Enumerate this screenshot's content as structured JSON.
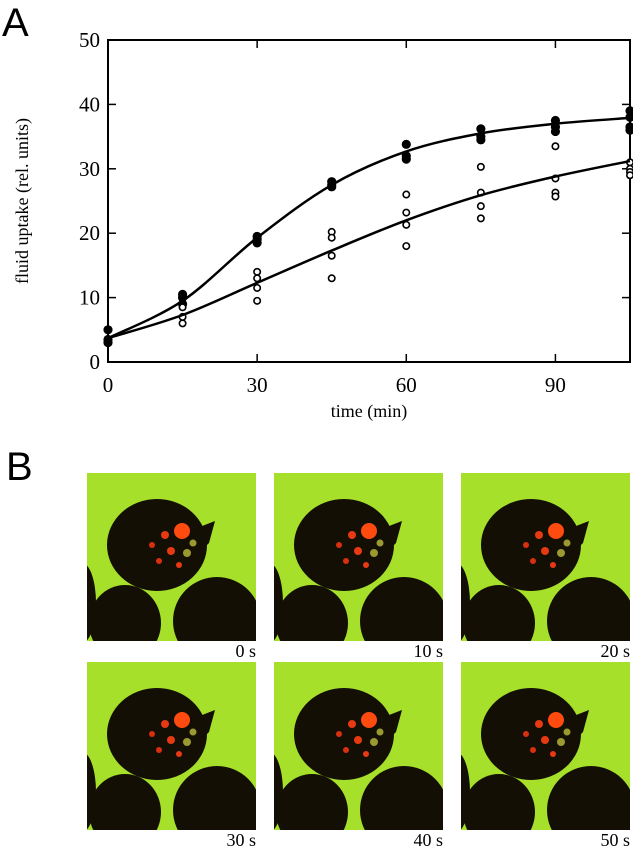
{
  "panel_a_label": "A",
  "chart_data": {
    "type": "scatter",
    "x_label": "time (min)",
    "y_label": "fluid uptake (rel. units)",
    "xlim": [
      0,
      105
    ],
    "ylim": [
      0,
      50
    ],
    "xticks": [
      0,
      30,
      60,
      90
    ],
    "yticks": [
      0,
      10,
      20,
      30,
      40,
      50
    ],
    "series": [
      {
        "marker": "filled",
        "color": "#000000",
        "x": [
          0,
          0,
          0,
          15,
          15,
          15,
          30,
          30,
          30,
          45,
          45,
          45,
          60,
          60,
          60,
          75,
          75,
          75,
          90,
          90,
          90,
          105,
          105,
          105,
          105
        ],
        "values": [
          5,
          3.5,
          3,
          10.5,
          10,
          9,
          19.5,
          19,
          18.5,
          28,
          27.5,
          27.2,
          33.8,
          32,
          31.5,
          36.2,
          35,
          34.5,
          37.5,
          36.5,
          35.8,
          39,
          38,
          36.5,
          36
        ]
      },
      {
        "marker": "open",
        "color": "#000000",
        "x": [
          15,
          15,
          15,
          30,
          30,
          30,
          30,
          45,
          45,
          45,
          45,
          60,
          60,
          60,
          60,
          75,
          75,
          75,
          75,
          90,
          90,
          90,
          90,
          105,
          105,
          105,
          105
        ],
        "values": [
          8.5,
          7,
          6,
          14,
          13,
          11.5,
          9.5,
          20.2,
          19.3,
          16.5,
          13,
          26,
          23.2,
          21.3,
          18,
          30.3,
          26.3,
          24.2,
          22.3,
          33.5,
          28.5,
          26.3,
          25.7,
          31,
          30,
          29.5,
          29
        ]
      },
      {
        "marker": "line",
        "color": "#000000",
        "x": [
          0,
          15,
          30,
          45,
          60,
          75,
          90,
          105
        ],
        "values": [
          3.7,
          9.5,
          19.3,
          27.5,
          32.7,
          35.5,
          37,
          37.9
        ]
      },
      {
        "marker": "line",
        "color": "#000000",
        "x": [
          0,
          15,
          30,
          45,
          60,
          75,
          90,
          105
        ],
        "values": [
          3.7,
          7.3,
          12.3,
          17.3,
          22,
          25.9,
          28.8,
          31.2
        ]
      }
    ]
  },
  "panel_b_label": "B",
  "frames": [
    "0 s",
    "10 s",
    "20 s",
    "30 s",
    "40 s",
    "50 s"
  ]
}
